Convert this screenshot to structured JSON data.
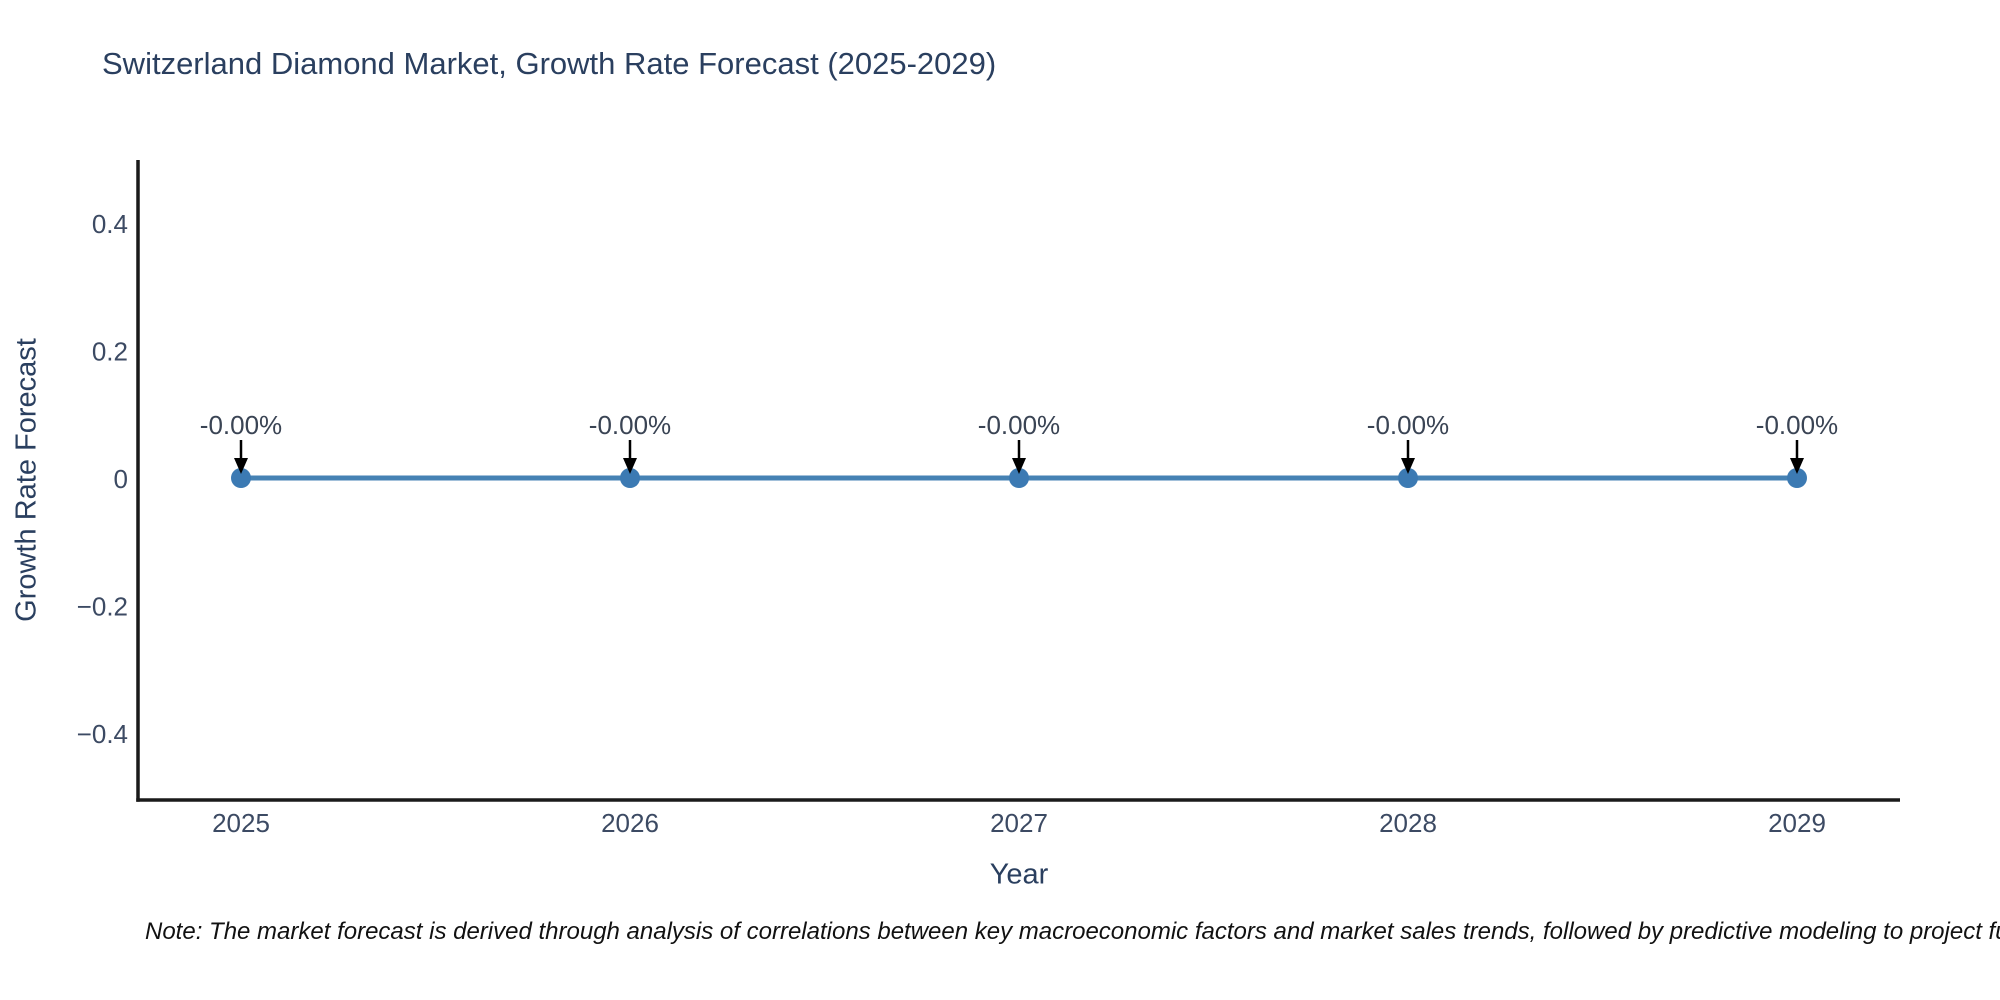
{
  "title": "Switzerland Diamond Market, Growth Rate Forecast (2025-2029)",
  "note": "Note: The market forecast is derived through analysis of correlations between key macroeconomic factors and market sales trends, followed by predictive modeling to project future sa",
  "chart_data": {
    "type": "line",
    "title": "Switzerland Diamond Market, Growth Rate Forecast (2025-2029)",
    "xlabel": "Year",
    "ylabel": "Growth Rate Forecast",
    "x": [
      2025,
      2026,
      2027,
      2028,
      2029
    ],
    "values": [
      0,
      0,
      0,
      0,
      0
    ],
    "point_labels": [
      "-0.00%",
      "-0.00%",
      "-0.00%",
      "-0.00%",
      "-0.00%"
    ],
    "xtick_labels": [
      "2025",
      "2026",
      "2027",
      "2028",
      "2029"
    ],
    "yticks": [
      0.4,
      0.2,
      0,
      -0.2,
      -0.4
    ],
    "ytick_labels": [
      "0.4",
      "0.2",
      "0",
      "−0.2",
      "−0.4"
    ],
    "ylim": [
      -0.5,
      0.5
    ],
    "grid": false,
    "legend": "none",
    "line_color": "#4682b4",
    "marker_color": "#3c7ab3",
    "axis_color": "#1a1a1a",
    "annotation_arrow_color": "#000000",
    "title_color": "#2a3f5f"
  }
}
